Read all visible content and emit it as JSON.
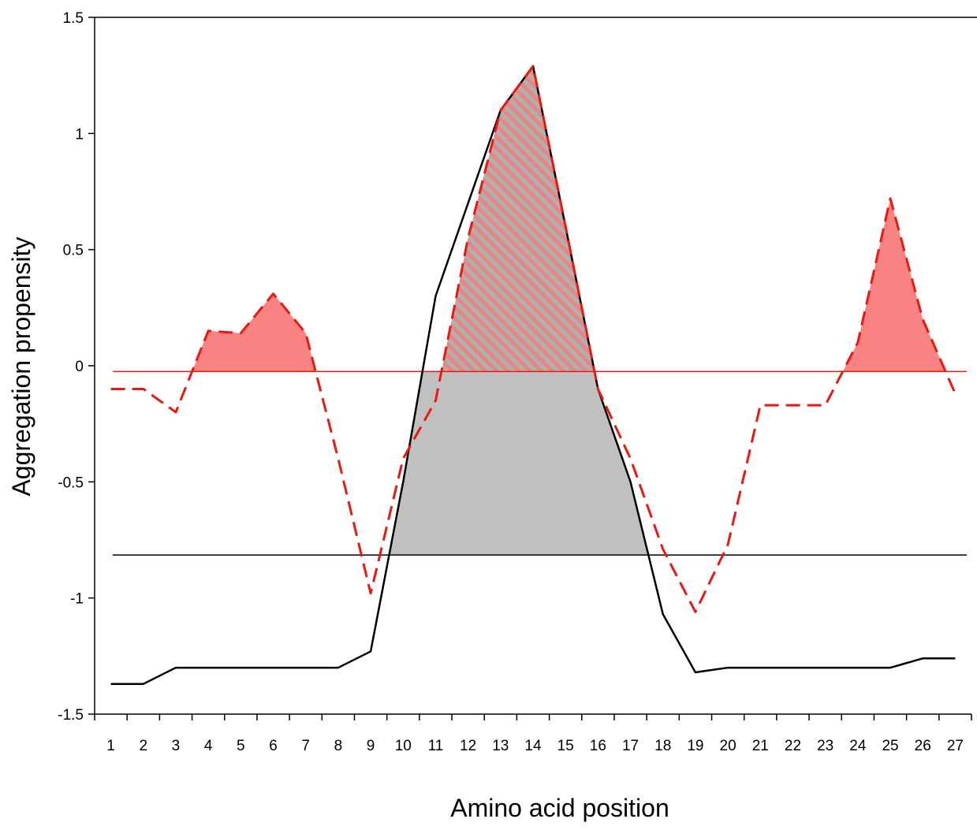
{
  "chart_data": {
    "type": "line",
    "xlabel": "Amino acid position",
    "ylabel": "Aggregation propensity",
    "categories": [
      "1",
      "2",
      "3",
      "4",
      "5",
      "6",
      "7",
      "8",
      "9",
      "10",
      "11",
      "12",
      "13",
      "14",
      "15",
      "16",
      "17",
      "18",
      "19",
      "20",
      "21",
      "22",
      "23",
      "24",
      "25",
      "26",
      "27"
    ],
    "ylim": [
      -1.5,
      1.5
    ],
    "yticks": [
      "-1.5",
      "-1",
      "-0.5",
      "0",
      "0.5",
      "1",
      "1.5"
    ],
    "grid": false,
    "series": [
      {
        "style": "solid",
        "color": "#000000",
        "values": [
          -1.37,
          -1.37,
          -1.3,
          -1.3,
          -1.3,
          -1.3,
          -1.3,
          -1.3,
          -1.23,
          -0.5,
          0.3,
          0.7,
          1.1,
          1.29,
          0.6,
          -0.1,
          -0.5,
          -1.07,
          -1.32,
          -1.3,
          -1.3,
          -1.3,
          -1.3,
          -1.3,
          -1.3,
          -1.26,
          -1.26
        ]
      },
      {
        "style": "dashed",
        "color": "#e8190f",
        "values": [
          -0.1,
          -0.1,
          -0.2,
          0.15,
          0.14,
          0.31,
          0.14,
          -0.4,
          -0.98,
          -0.4,
          -0.15,
          0.55,
          1.1,
          1.29,
          0.6,
          -0.1,
          -0.4,
          -0.79,
          -1.06,
          -0.77,
          -0.17,
          -0.17,
          -0.17,
          0.1,
          0.72,
          0.2,
          -0.12
        ]
      }
    ],
    "thresholds": [
      {
        "value": -0.025,
        "color": "#e8190f"
      },
      {
        "value": -0.815,
        "color": "#000000"
      }
    ],
    "fills": {
      "red_above_red_threshold": "#f98383",
      "gray_above_black_threshold": "#c0c0c0",
      "hatch_color": "#e07a7a"
    }
  }
}
